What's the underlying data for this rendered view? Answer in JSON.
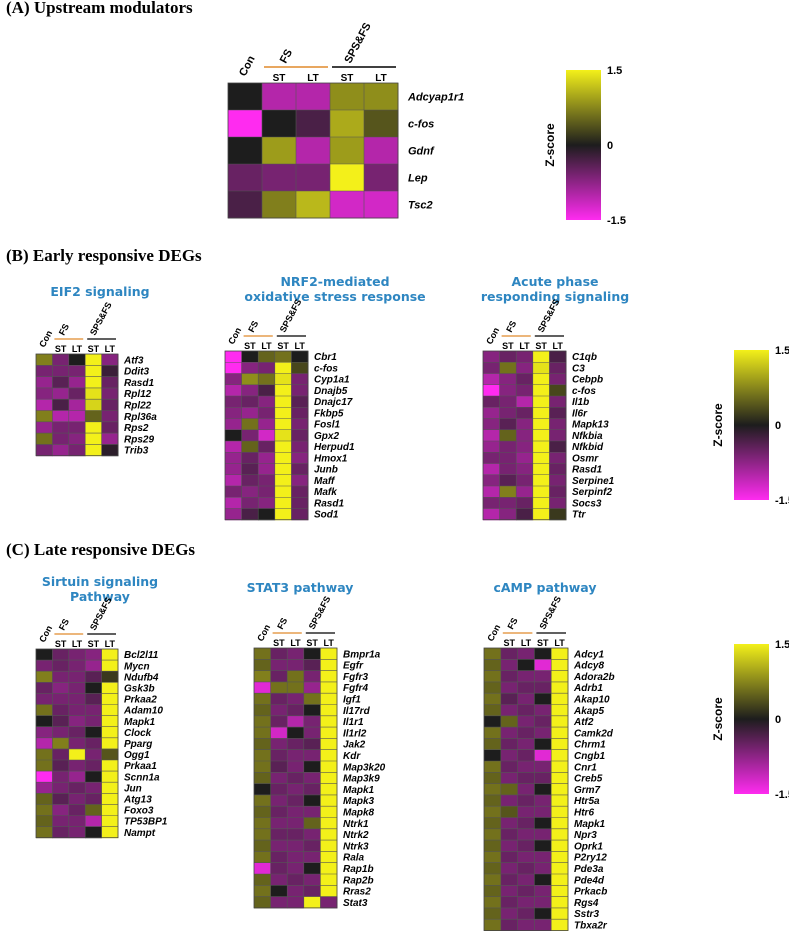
{
  "sections": [
    {
      "id": "A",
      "title": "(A) Upstream modulators"
    },
    {
      "id": "B",
      "title": "(B) Early responsive DEGs"
    },
    {
      "id": "C",
      "title": "(C) Late responsive DEGs"
    }
  ],
  "pathway_titles": {
    "eif2": "EIF2 signaling",
    "nrf2_line1": "NRF2-mediated",
    "nrf2_line2": "oxidative stress response",
    "acute_line1": "Acute phase",
    "acute_line2": "responding signaling",
    "sirtuin_line1": "Sirtuin signaling",
    "sirtuin_line2": "Pathway",
    "stat3": "STAT3 pathway",
    "camp": "cAMP pathway"
  },
  "colorbar": {
    "label": "Z-score",
    "max_label": "1.5",
    "mid_label": "0",
    "min_label": "-1.5"
  },
  "colors": {
    "low": "#ff2bf0",
    "mid": "#1d1d1d",
    "high": "#f3f01a",
    "group_line": "#e08a2c",
    "title_blue": "#2e86c1"
  },
  "chart_data": [
    {
      "type": "heatmap",
      "id": "upstream",
      "title": "",
      "columns": [
        "Con",
        "FS ST",
        "FS LT",
        "SPS&FS ST",
        "SPS&FS LT"
      ],
      "column_header": {
        "con": "Con",
        "g1": "FS",
        "g2": "SPS&FS",
        "sub": [
          "ST",
          "LT",
          "ST",
          "LT"
        ]
      },
      "genes": [
        "Adcyap1r1",
        "c-fos",
        "Gdnf",
        "Lep",
        "Tsc2"
      ],
      "values": [
        [
          0,
          -1.0,
          -1.0,
          0.8,
          0.8
        ],
        [
          -1.5,
          0,
          -0.3,
          1.0,
          0.4
        ],
        [
          0,
          0.9,
          -1.0,
          0.9,
          -1.0
        ],
        [
          -0.5,
          -0.6,
          -0.6,
          1.5,
          -0.6
        ],
        [
          -0.3,
          0.7,
          1.1,
          -1.2,
          -1.2
        ]
      ],
      "zrange": [
        -1.5,
        1.5
      ]
    },
    {
      "type": "heatmap",
      "id": "eif2",
      "title": "EIF2 signaling",
      "columns": [
        "Con",
        "FS ST",
        "FS LT",
        "SPS&FS ST",
        "SPS&FS LT"
      ],
      "column_header": {
        "con": "Con",
        "g1": "FS",
        "g2": "SPS&FS",
        "sub": [
          "ST",
          "LT",
          "ST",
          "LT"
        ]
      },
      "genes": [
        "Atf3",
        "Ddit3",
        "Rasd1",
        "Rpl12",
        "Rpl22",
        "Rpl36a",
        "Rps2",
        "Rps29",
        "Trib3"
      ],
      "values": [
        [
          0.7,
          -0.6,
          0,
          1.5,
          -0.7
        ],
        [
          -0.6,
          -0.6,
          -0.6,
          1.5,
          -0.2
        ],
        [
          -0.8,
          -0.4,
          -0.8,
          1.5,
          -0.5
        ],
        [
          -0.7,
          -0.8,
          -0.5,
          1.4,
          -0.6
        ],
        [
          -1.0,
          -0.3,
          -0.9,
          1.3,
          -0.5
        ],
        [
          0.7,
          -1.0,
          -1.0,
          0.5,
          -0.6
        ],
        [
          -0.8,
          -0.6,
          -0.6,
          1.5,
          -0.5
        ],
        [
          0.6,
          -0.6,
          -0.7,
          1.5,
          -0.8
        ],
        [
          -0.6,
          -0.8,
          -0.6,
          1.5,
          -0.1
        ]
      ],
      "zrange": [
        -1.5,
        1.5
      ]
    },
    {
      "type": "heatmap",
      "id": "nrf2",
      "title": "NRF2-mediated oxidative stress response",
      "columns": [
        "Con",
        "FS ST",
        "FS LT",
        "SPS&FS ST",
        "SPS&FS LT"
      ],
      "column_header": {
        "con": "Con",
        "g1": "FS",
        "g2": "SPS&FS",
        "sub": [
          "ST",
          "LT",
          "ST",
          "LT"
        ]
      },
      "genes": [
        "Cbr1",
        "c-fos",
        "Cyp1a1",
        "Dnajb5",
        "Dnajc17",
        "Fkbp5",
        "Fosl1",
        "Gpx2",
        "Herpud1",
        "Hmox1",
        "Junb",
        "Maff",
        "Mafk",
        "Rasd1",
        "Sod1"
      ],
      "values": [
        [
          -1.5,
          0,
          0.5,
          0.6,
          0
        ],
        [
          -1.5,
          -0.7,
          -0.6,
          1.5,
          0.3
        ],
        [
          -0.7,
          0.8,
          0.6,
          1.4,
          -0.6
        ],
        [
          -1.0,
          -0.7,
          -0.3,
          1.5,
          -0.6
        ],
        [
          -0.6,
          -0.5,
          -0.7,
          1.5,
          -0.4
        ],
        [
          -0.7,
          -0.8,
          -0.6,
          1.5,
          -0.5
        ],
        [
          -0.8,
          0.6,
          -0.8,
          1.5,
          -0.6
        ],
        [
          0,
          -0.6,
          -1.2,
          1.4,
          -0.5
        ],
        [
          -1.0,
          0.5,
          -0.5,
          1.5,
          -0.6
        ],
        [
          -0.8,
          -0.5,
          -0.8,
          1.5,
          -0.7
        ],
        [
          -0.8,
          -0.4,
          -0.8,
          1.5,
          -0.5
        ],
        [
          -1.0,
          -0.5,
          -0.6,
          1.5,
          -0.7
        ],
        [
          -0.6,
          -0.7,
          -0.6,
          1.5,
          -0.5
        ],
        [
          -1.0,
          -0.6,
          -0.7,
          1.5,
          -0.5
        ],
        [
          -0.8,
          -0.3,
          0,
          1.5,
          -0.5
        ]
      ],
      "zrange": [
        -1.5,
        1.5
      ]
    },
    {
      "type": "heatmap",
      "id": "acute",
      "title": "Acute phase responding signaling",
      "columns": [
        "Con",
        "FS ST",
        "FS LT",
        "SPS&FS ST",
        "SPS&FS LT"
      ],
      "column_header": {
        "con": "Con",
        "g1": "FS",
        "g2": "SPS&FS",
        "sub": [
          "ST",
          "LT",
          "ST",
          "LT"
        ]
      },
      "genes": [
        "C1qb",
        "C3",
        "Cebpb",
        "c-fos",
        "Il1b",
        "Il6r",
        "Mapk13",
        "Nfkbia",
        "Nfkbid",
        "Osmr",
        "Rasd1",
        "Serpine1",
        "Serpinf2",
        "Socs3",
        "Ttr"
      ],
      "values": [
        [
          -0.7,
          -0.5,
          -0.6,
          1.5,
          -0.3
        ],
        [
          -0.6,
          0.6,
          -0.7,
          1.4,
          -0.5
        ],
        [
          -1.0,
          -0.7,
          -0.5,
          1.5,
          -0.6
        ],
        [
          -1.5,
          -0.7,
          -0.6,
          1.5,
          0.3
        ],
        [
          -0.5,
          -0.6,
          -1.0,
          1.5,
          -0.6
        ],
        [
          -0.8,
          -0.6,
          -0.5,
          1.5,
          -0.4
        ],
        [
          -0.7,
          -0.4,
          -0.7,
          1.5,
          -0.6
        ],
        [
          -1.0,
          0.5,
          -0.7,
          1.5,
          -0.6
        ],
        [
          -0.8,
          -0.6,
          -0.7,
          1.5,
          -0.3
        ],
        [
          -0.6,
          -0.6,
          -0.8,
          1.5,
          -0.6
        ],
        [
          -1.0,
          -0.6,
          -0.7,
          1.5,
          -0.5
        ],
        [
          -0.7,
          -0.4,
          -0.6,
          1.5,
          -0.6
        ],
        [
          -1.0,
          0.7,
          -0.8,
          1.5,
          -0.5
        ],
        [
          -0.6,
          -0.6,
          -0.5,
          1.5,
          -0.6
        ],
        [
          -1.0,
          -0.7,
          -0.3,
          1.5,
          0.2
        ]
      ],
      "zrange": [
        -1.5,
        1.5
      ]
    },
    {
      "type": "heatmap",
      "id": "sirtuin",
      "title": "Sirtuin signaling Pathway",
      "columns": [
        "Con",
        "FS ST",
        "FS LT",
        "SPS&FS ST",
        "SPS&FS LT"
      ],
      "column_header": {
        "con": "Con",
        "g1": "FS",
        "g2": "SPS&FS",
        "sub": [
          "ST",
          "LT",
          "ST",
          "LT"
        ]
      },
      "genes": [
        "Bcl2l11",
        "Mycn",
        "Ndufb4",
        "Gsk3b",
        "Prkaa2",
        "Adam10",
        "Mapk1",
        "Clock",
        "Pparg",
        "Ogg1",
        "Prkaa1",
        "Scnn1a",
        "Jun",
        "Atg13",
        "Foxo3",
        "TP53BP1",
        "Nampt"
      ],
      "values": [
        [
          0,
          -0.5,
          -0.6,
          -0.7,
          1.5
        ],
        [
          -0.6,
          -0.5,
          -0.6,
          -0.8,
          1.5
        ],
        [
          0.7,
          -0.6,
          -0.6,
          -0.4,
          0.2
        ],
        [
          -0.5,
          -0.7,
          -0.6,
          0,
          1.5
        ],
        [
          -0.6,
          -0.6,
          -0.6,
          -0.4,
          1.5
        ],
        [
          0.6,
          -0.5,
          -0.6,
          -0.6,
          1.5
        ],
        [
          0,
          -0.4,
          -0.7,
          -0.6,
          1.5
        ],
        [
          -0.7,
          -0.6,
          -0.5,
          0,
          1.5
        ],
        [
          -1.0,
          0.7,
          -0.6,
          -0.5,
          1.5
        ],
        [
          0.6,
          -0.5,
          1.5,
          -0.6,
          0.4
        ],
        [
          0.6,
          -0.4,
          -0.6,
          -0.5,
          1.5
        ],
        [
          -1.5,
          -0.6,
          -0.8,
          0,
          1.5
        ],
        [
          -0.8,
          -0.6,
          -0.5,
          -0.6,
          1.5
        ],
        [
          0.5,
          -0.4,
          -0.6,
          -0.5,
          1.5
        ],
        [
          0.6,
          -0.7,
          -0.5,
          0.5,
          1.5
        ],
        [
          0.5,
          -0.6,
          -0.6,
          -1.0,
          1.5
        ],
        [
          0.6,
          -0.5,
          -0.6,
          0,
          1.5
        ]
      ],
      "zrange": [
        -1.5,
        1.5
      ]
    },
    {
      "type": "heatmap",
      "id": "stat3",
      "title": "STAT3 pathway",
      "columns": [
        "Con",
        "FS ST",
        "FS LT",
        "SPS&FS ST",
        "SPS&FS LT"
      ],
      "column_header": {
        "con": "Con",
        "g1": "FS",
        "g2": "SPS&FS",
        "sub": [
          "ST",
          "LT",
          "ST",
          "LT"
        ]
      },
      "genes": [
        "Bmpr1a",
        "Egfr",
        "Fgfr3",
        "Fgfr4",
        "Igf1",
        "Il17rd",
        "Il1r1",
        "Il1rl2",
        "Jak2",
        "Kdr",
        "Map3k20",
        "Map3k9",
        "Mapk1",
        "Mapk3",
        "Mapk8",
        "Ntrk1",
        "Ntrk2",
        "Ntrk3",
        "Rala",
        "Rap1b",
        "Rap2b",
        "Rras2",
        "Stat3"
      ],
      "values": [
        [
          0.6,
          -0.5,
          -0.6,
          0,
          1.5
        ],
        [
          0.5,
          -0.6,
          -0.6,
          -0.4,
          1.5
        ],
        [
          0.7,
          -0.5,
          0.6,
          -0.6,
          1.5
        ],
        [
          -1.3,
          0.6,
          0.6,
          -0.8,
          1.5
        ],
        [
          0.6,
          -0.5,
          -0.6,
          0.6,
          1.5
        ],
        [
          0.5,
          -0.6,
          -0.5,
          0,
          1.5
        ],
        [
          0.6,
          -0.5,
          -1.0,
          -0.6,
          1.5
        ],
        [
          0.6,
          -1.2,
          0,
          -0.6,
          1.5
        ],
        [
          0.5,
          -0.6,
          -0.5,
          -0.4,
          1.5
        ],
        [
          0.6,
          -0.5,
          -0.6,
          -0.6,
          1.5
        ],
        [
          0.6,
          -0.4,
          -0.6,
          0,
          1.5
        ],
        [
          0.5,
          -0.6,
          -0.5,
          -0.6,
          1.5
        ],
        [
          0,
          -0.5,
          -0.6,
          -0.5,
          1.5
        ],
        [
          0.6,
          -0.6,
          -0.5,
          0,
          1.5
        ],
        [
          0.5,
          -0.5,
          -0.6,
          -0.6,
          1.5
        ],
        [
          0.6,
          -0.6,
          -0.6,
          0.5,
          1.5
        ],
        [
          0.6,
          -0.5,
          -0.5,
          -0.6,
          1.5
        ],
        [
          0.5,
          -0.6,
          -0.6,
          -0.5,
          1.5
        ],
        [
          0.6,
          -0.5,
          -0.6,
          -0.6,
          1.5
        ],
        [
          -1.3,
          -0.5,
          -0.6,
          0,
          1.5
        ],
        [
          0.5,
          -0.6,
          -0.5,
          -0.6,
          1.5
        ],
        [
          0.6,
          0,
          -0.6,
          -0.5,
          1.5
        ],
        [
          0.5,
          -0.6,
          -0.6,
          1.5,
          -0.6
        ]
      ],
      "zrange": [
        -1.5,
        1.5
      ]
    },
    {
      "type": "heatmap",
      "id": "camp",
      "title": "cAMP pathway",
      "columns": [
        "Con",
        "FS ST",
        "FS LT",
        "SPS&FS ST",
        "SPS&FS LT"
      ],
      "column_header": {
        "con": "Con",
        "g1": "FS",
        "g2": "SPS&FS",
        "sub": [
          "ST",
          "LT",
          "ST",
          "LT"
        ]
      },
      "genes": [
        "Adcy1",
        "Adcy8",
        "Adora2b",
        "Adrb1",
        "Akap10",
        "Akap5",
        "Atf2",
        "Camk2d",
        "Chrm1",
        "Cngb1",
        "Cnr1",
        "Creb5",
        "Grm7",
        "Htr5a",
        "Htr6",
        "Mapk1",
        "Npr3",
        "Oprk1",
        "P2ry12",
        "Pde3a",
        "Pde4d",
        "Prkacb",
        "Rgs4",
        "Sstr3",
        "Tbxa2r"
      ],
      "values": [
        [
          0.6,
          -0.5,
          -0.6,
          0,
          1.5
        ],
        [
          0.5,
          -0.6,
          0,
          -1.3,
          1.5
        ],
        [
          0.6,
          -0.5,
          -0.6,
          -0.6,
          1.5
        ],
        [
          0.5,
          -0.6,
          -0.5,
          -0.5,
          1.5
        ],
        [
          0.6,
          -0.4,
          -0.6,
          0,
          1.5
        ],
        [
          0.5,
          -0.6,
          -0.5,
          -0.6,
          1.5
        ],
        [
          0,
          0.5,
          -0.6,
          -0.5,
          1.5
        ],
        [
          0.6,
          -0.6,
          -0.5,
          -0.6,
          1.5
        ],
        [
          0.5,
          -0.5,
          -0.6,
          0,
          1.5
        ],
        [
          0,
          -0.6,
          -0.5,
          -1.3,
          1.5
        ],
        [
          0.6,
          -0.5,
          -0.6,
          -0.6,
          1.5
        ],
        [
          0.5,
          -0.6,
          -0.5,
          -0.5,
          1.5
        ],
        [
          0.6,
          0.5,
          -0.6,
          0,
          1.5
        ],
        [
          0.5,
          -0.6,
          -0.5,
          -0.6,
          1.5
        ],
        [
          0.6,
          0.4,
          -0.6,
          -0.6,
          1.5
        ],
        [
          0.5,
          -0.6,
          -0.5,
          0,
          1.5
        ],
        [
          0.6,
          -0.5,
          -0.6,
          -0.6,
          1.5
        ],
        [
          0.5,
          -0.6,
          -0.5,
          0,
          1.5
        ],
        [
          0.6,
          -0.5,
          -0.6,
          -0.6,
          1.5
        ],
        [
          0.5,
          -0.6,
          -0.5,
          -0.6,
          1.5
        ],
        [
          0.6,
          -0.5,
          -0.6,
          0,
          1.5
        ],
        [
          0.5,
          -0.6,
          -0.5,
          -0.6,
          1.5
        ],
        [
          0.6,
          -0.5,
          -0.6,
          -0.6,
          1.5
        ],
        [
          0.5,
          -0.6,
          -0.5,
          0,
          1.5
        ],
        [
          0.6,
          -0.5,
          -0.6,
          -0.6,
          1.5
        ]
      ],
      "zrange": [
        -1.5,
        1.5
      ]
    }
  ]
}
